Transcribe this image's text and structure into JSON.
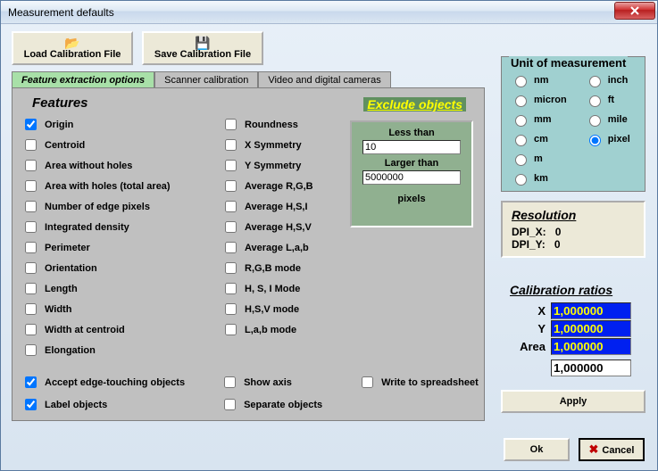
{
  "window": {
    "title": "Measurement defaults"
  },
  "toolbar": {
    "load_label": "Load Calibration File",
    "save_label": "Save Calibration File"
  },
  "tabs": {
    "t0": "Feature extraction options",
    "t1": "Scanner calibration",
    "t2": "Video and digital cameras",
    "active": 0
  },
  "features": {
    "heading": "Features",
    "exclude_link": "Exclude objects",
    "col1": [
      {
        "label": "Origin",
        "checked": true
      },
      {
        "label": "Centroid",
        "checked": false
      },
      {
        "label": "Area without holes",
        "checked": false
      },
      {
        "label": "Area with holes (total area)",
        "checked": false
      },
      {
        "label": "Number of edge pixels",
        "checked": false
      },
      {
        "label": "Integrated density",
        "checked": false
      },
      {
        "label": "Perimeter",
        "checked": false
      },
      {
        "label": "Orientation",
        "checked": false
      },
      {
        "label": "Length",
        "checked": false
      },
      {
        "label": "Width",
        "checked": false
      },
      {
        "label": "Width at centroid",
        "checked": false
      },
      {
        "label": "Elongation",
        "checked": false
      }
    ],
    "col2": [
      {
        "label": "Roundness",
        "checked": false
      },
      {
        "label": "X Symmetry",
        "checked": false
      },
      {
        "label": "Y Symmetry",
        "checked": false
      },
      {
        "label": "Average R,G,B",
        "checked": false
      },
      {
        "label": "Average H,S,I",
        "checked": false
      },
      {
        "label": "Average H,S,V",
        "checked": false
      },
      {
        "label": "Average L,a,b",
        "checked": false
      },
      {
        "label": "R,G,B mode",
        "checked": false
      },
      {
        "label": "H, S, I Mode",
        "checked": false
      },
      {
        "label": "H,S,V mode",
        "checked": false
      },
      {
        "label": "L,a,b mode",
        "checked": false
      }
    ],
    "exclude_box": {
      "less_label": "Less than",
      "less_value": "10",
      "larger_label": "Larger than",
      "larger_value": "5000000",
      "unit_label": "pixels"
    },
    "opts": {
      "accept": {
        "label": "Accept edge-touching objects",
        "checked": true
      },
      "label_obj": {
        "label": "Label objects",
        "checked": true
      },
      "show_axis": {
        "label": "Show axis",
        "checked": false
      },
      "separate": {
        "label": "Separate objects",
        "checked": false
      },
      "spreadsheet": {
        "label": "Write to spreadsheet",
        "checked": false
      }
    }
  },
  "units": {
    "heading": "Unit of measurement",
    "selected": "pixel",
    "col1": [
      "nm",
      "micron",
      "mm",
      "cm",
      "m",
      "km"
    ],
    "col2": [
      "inch",
      "ft",
      "mile",
      "pixel"
    ]
  },
  "resolution": {
    "heading": "Resolution",
    "dpi_x_label": "DPI_X:",
    "dpi_x_value": "0",
    "dpi_y_label": "DPI_Y:",
    "dpi_y_value": "0"
  },
  "calibration": {
    "heading": "Calibration ratios",
    "x_label": "X",
    "x_value": "1,000000",
    "y_label": "Y",
    "y_value": "1,000000",
    "area_label": "Area",
    "area_value": "1,000000",
    "extra_value": "1,000000"
  },
  "buttons": {
    "apply": "Apply",
    "ok": "Ok",
    "cancel": "Cancel"
  }
}
